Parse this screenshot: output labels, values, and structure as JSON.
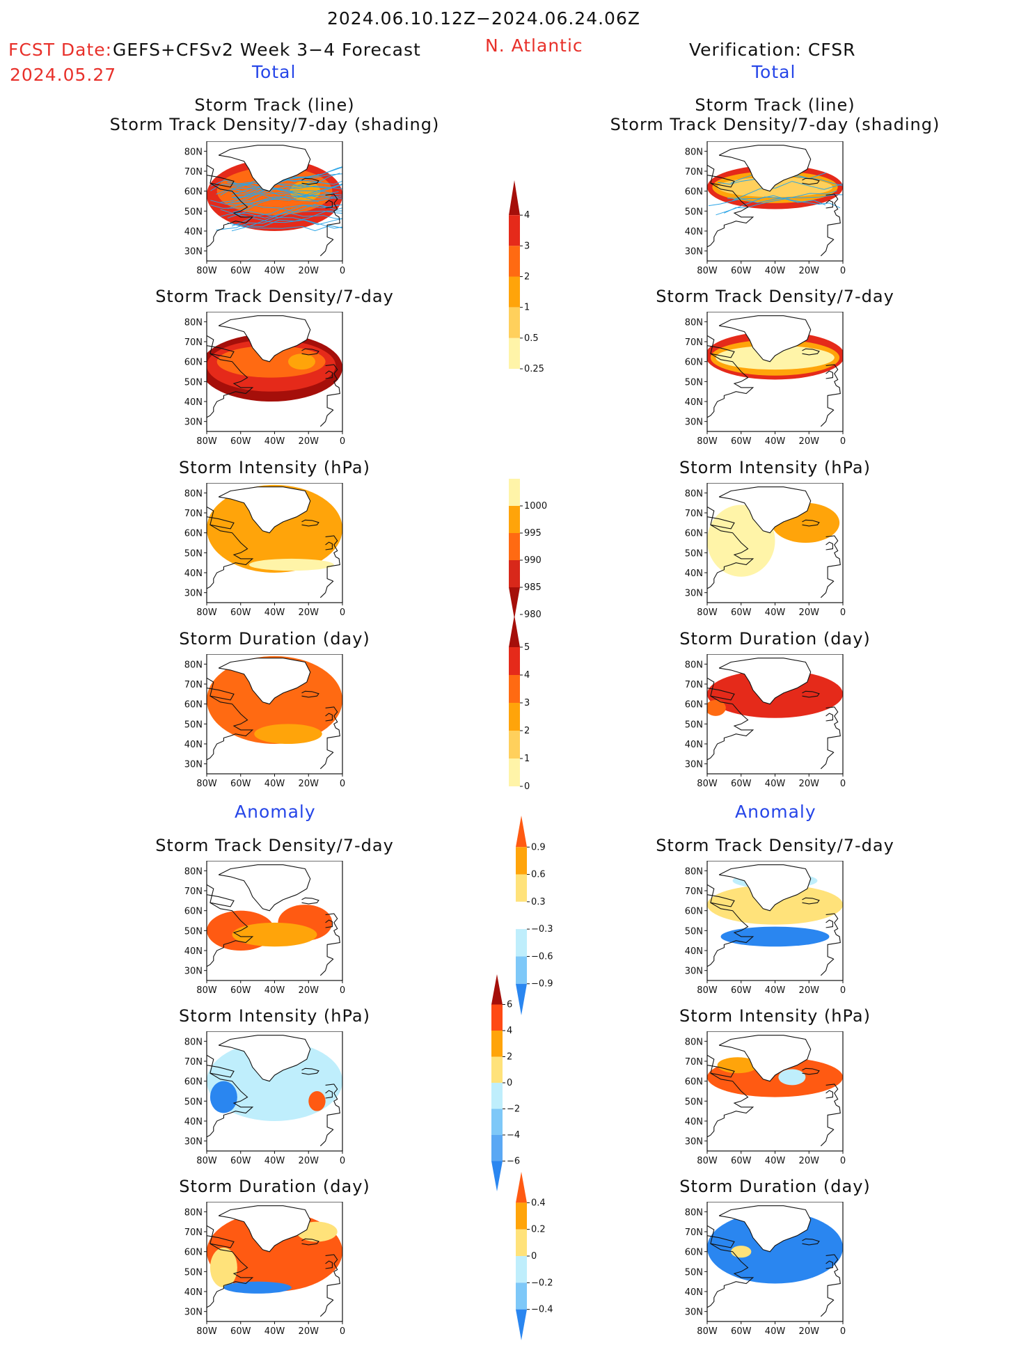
{
  "header": {
    "period": "2024.06.10.12Z−2024.06.24.06Z",
    "fcst_label": "FCST Date:",
    "model": "GEFS+CFSv2 Week 3−4 Forecast",
    "fcst_date": "2024.05.27",
    "region": "N. Atlantic",
    "verification": "Verification: CFSR",
    "left_total": "Total",
    "right_total": "Total",
    "left_anomaly": "Anomaly",
    "right_anomaly": "Anomaly"
  },
  "axis_ticks": {
    "lat": [
      "80N",
      "70N",
      "60N",
      "50N",
      "40N",
      "30N"
    ],
    "lon": [
      "80W",
      "60W",
      "40W",
      "20W",
      "0"
    ]
  },
  "colorbars": [
    {
      "name": "track-density",
      "labels": [
        "4",
        "3",
        "2",
        "1",
        "0.5",
        "0.25"
      ],
      "colors": [
        "#a50f0a",
        "#e52a1a",
        "#ff6a12",
        "#ffa40a",
        "#ffd05c",
        "#fff4a8"
      ],
      "top_arrow": true,
      "bottom_arrow": false
    },
    {
      "name": "intensity",
      "labels": [
        "1000",
        "995",
        "990",
        "985",
        "980"
      ],
      "colors": [
        "#fff4a8",
        "#ffa40a",
        "#ff6a12",
        "#d8281a",
        "#a50f0a"
      ],
      "top_arrow": false,
      "bottom_arrow": true
    },
    {
      "name": "duration",
      "labels": [
        "5",
        "4",
        "3",
        "2",
        "1",
        "0"
      ],
      "colors": [
        "#a50f0a",
        "#e52a1a",
        "#ff6a12",
        "#ffa40a",
        "#ffd05c",
        "#fff4a8"
      ],
      "top_arrow": true,
      "bottom_arrow": false
    },
    {
      "name": "density-anomaly",
      "labels": [
        "0.9",
        "0.6",
        "0.3",
        "−0.3",
        "−0.6",
        "−0.9"
      ],
      "colors": [
        "#ff5a12",
        "#ffa40a",
        "#ffe27a",
        "#ffffff",
        "#bfeefc",
        "#7ec8f8",
        "#2a86f0"
      ],
      "top_arrow": true,
      "bottom_arrow": true
    },
    {
      "name": "intensity-anomaly",
      "labels": [
        "6",
        "4",
        "2",
        "0",
        "−2",
        "−4",
        "−6"
      ],
      "colors": [
        "#a50f0a",
        "#ff4a14",
        "#ffa40a",
        "#ffe27a",
        "#bfeefc",
        "#7ec8f8",
        "#5aa8f4",
        "#2a86f0"
      ],
      "top_arrow": true,
      "bottom_arrow": true
    },
    {
      "name": "duration-anomaly",
      "labels": [
        "0.4",
        "0.2",
        "0",
        "−0.2",
        "−0.4"
      ],
      "colors": [
        "#ff5a12",
        "#ffa40a",
        "#ffe27a",
        "#bfeefc",
        "#7ec8f8",
        "#2a86f0"
      ],
      "top_arrow": true,
      "bottom_arrow": true
    }
  ],
  "chart_data": [
    {
      "type": "heatmap",
      "title": "Storm Track (line) / Storm Track Density/7-day (shading)",
      "side": "GEFS+CFSv2 Week 3−4 Forecast",
      "section": "Total",
      "title_lines": [
        "Storm Track (line)",
        "Storm Track Density/7-day (shading)"
      ],
      "xlim": [
        -80,
        0
      ],
      "ylim": [
        25,
        85
      ],
      "blobs": [
        {
          "lon": -40,
          "lat": 58,
          "rx": 40,
          "ry": 18,
          "level": 1
        },
        {
          "lon": -40,
          "lat": 60,
          "rx": 34,
          "ry": 12,
          "level": 2
        },
        {
          "lon": -22,
          "lat": 60,
          "rx": 9,
          "ry": 5,
          "level": 3
        }
      ],
      "tracks": "many"
    },
    {
      "type": "heatmap",
      "title": "Storm Track (line) / Storm Track Density/7-day (shading)",
      "side": "Verification: CFSR",
      "section": "Total",
      "title_lines": [
        "Storm Track (line)",
        "Storm Track Density/7-day (shading)"
      ],
      "xlim": [
        -80,
        0
      ],
      "ylim": [
        25,
        85
      ],
      "blobs": [
        {
          "lon": -40,
          "lat": 62,
          "rx": 40,
          "ry": 11,
          "level": 1
        },
        {
          "lon": -40,
          "lat": 62,
          "rx": 37,
          "ry": 8,
          "level": 3
        },
        {
          "lon": -40,
          "lat": 62,
          "rx": 34,
          "ry": 5,
          "level": 4
        }
      ],
      "tracks": "few"
    },
    {
      "type": "heatmap",
      "title": "Storm Track Density/7-day",
      "side": "GEFS+CFSv2 Week 3−4 Forecast",
      "section": "Total",
      "title_lines": [
        "Storm Track Density/7-day"
      ],
      "xlim": [
        -80,
        0
      ],
      "ylim": [
        25,
        85
      ],
      "blobs": [
        {
          "lon": -42,
          "lat": 57,
          "rx": 42,
          "ry": 17,
          "level": 0
        },
        {
          "lon": -42,
          "lat": 58,
          "rx": 38,
          "ry": 13,
          "level": 1
        },
        {
          "lon": -42,
          "lat": 60,
          "rx": 32,
          "ry": 8,
          "level": 2
        },
        {
          "lon": -24,
          "lat": 60,
          "rx": 8,
          "ry": 4,
          "level": 3
        }
      ]
    },
    {
      "type": "heatmap",
      "title": "Storm Track Density/7-day",
      "side": "Verification: CFSR",
      "section": "Total",
      "title_lines": [
        "Storm Track Density/7-day"
      ],
      "xlim": [
        -80,
        0
      ],
      "ylim": [
        25,
        85
      ],
      "blobs": [
        {
          "lon": -40,
          "lat": 63,
          "rx": 41,
          "ry": 12,
          "level": 1
        },
        {
          "lon": -40,
          "lat": 62,
          "rx": 38,
          "ry": 9,
          "level": 3
        },
        {
          "lon": -40,
          "lat": 62,
          "rx": 35,
          "ry": 6,
          "level": 5
        }
      ]
    },
    {
      "type": "heatmap",
      "title": "Storm Intensity (hPa)",
      "side": "GEFS+CFSv2 Week 3−4 Forecast",
      "section": "Total",
      "title_lines": [
        "Storm Intensity (hPa)"
      ],
      "xlim": [
        -80,
        0
      ],
      "ylim": [
        25,
        85
      ],
      "blobs": [
        {
          "lon": -40,
          "lat": 62,
          "rx": 40,
          "ry": 22,
          "level": 1
        },
        {
          "lon": -30,
          "lat": 44,
          "rx": 25,
          "ry": 3,
          "level": 0
        }
      ]
    },
    {
      "type": "heatmap",
      "title": "Storm Intensity (hPa)",
      "side": "Verification: CFSR",
      "section": "Total",
      "title_lines": [
        "Storm Intensity (hPa)"
      ],
      "xlim": [
        -80,
        0
      ],
      "ylim": [
        25,
        85
      ],
      "blobs": [
        {
          "lon": -60,
          "lat": 56,
          "rx": 20,
          "ry": 18,
          "level": 0
        },
        {
          "lon": -22,
          "lat": 65,
          "rx": 20,
          "ry": 10,
          "level": 1
        }
      ]
    },
    {
      "type": "heatmap",
      "title": "Storm Duration (day)",
      "side": "GEFS+CFSv2 Week 3−4 Forecast",
      "section": "Total",
      "title_lines": [
        "Storm Duration (day)"
      ],
      "xlim": [
        -80,
        0
      ],
      "ylim": [
        25,
        85
      ],
      "blobs": [
        {
          "lon": -40,
          "lat": 62,
          "rx": 40,
          "ry": 22,
          "level": 2
        },
        {
          "lon": -32,
          "lat": 45,
          "rx": 20,
          "ry": 5,
          "level": 3
        }
      ]
    },
    {
      "type": "heatmap",
      "title": "Storm Duration (day)",
      "side": "Verification: CFSR",
      "section": "Total",
      "title_lines": [
        "Storm Duration (day)"
      ],
      "xlim": [
        -80,
        0
      ],
      "ylim": [
        25,
        85
      ],
      "blobs": [
        {
          "lon": -40,
          "lat": 65,
          "rx": 40,
          "ry": 12,
          "level": 1
        },
        {
          "lon": -75,
          "lat": 58,
          "rx": 6,
          "ry": 4,
          "level": 2
        }
      ]
    },
    {
      "type": "heatmap",
      "title": "Storm Track Density/7-day",
      "side": "GEFS+CFSv2 Week 3−4 Forecast",
      "section": "Anomaly",
      "title_lines": [
        "Storm Track Density/7-day"
      ],
      "xlim": [
        -80,
        0
      ],
      "ylim": [
        25,
        85
      ],
      "blobs": [
        {
          "lon": -60,
          "lat": 50,
          "rx": 20,
          "ry": 10,
          "level": 2
        },
        {
          "lon": -22,
          "lat": 54,
          "rx": 16,
          "ry": 9,
          "level": 2
        },
        {
          "lon": -40,
          "lat": 48,
          "rx": 25,
          "ry": 6,
          "level": 1
        }
      ]
    },
    {
      "type": "heatmap",
      "title": "Storm Track Density/7-day",
      "side": "Verification: CFSR",
      "section": "Anomaly",
      "title_lines": [
        "Storm Track Density/7-day"
      ],
      "xlim": [
        -80,
        0
      ],
      "ylim": [
        25,
        85
      ],
      "blobs": [
        {
          "lon": -40,
          "lat": 63,
          "rx": 40,
          "ry": 10,
          "level": 0
        },
        {
          "lon": -40,
          "lat": 47,
          "rx": 32,
          "ry": 5,
          "level": 5
        },
        {
          "lon": -40,
          "lat": 75,
          "rx": 25,
          "ry": 4,
          "level": 4
        }
      ]
    },
    {
      "type": "heatmap",
      "title": "Storm Intensity (hPa)",
      "side": "GEFS+CFSv2 Week 3−4 Forecast",
      "section": "Anomaly",
      "title_lines": [
        "Storm Intensity (hPa)"
      ],
      "xlim": [
        -80,
        0
      ],
      "ylim": [
        25,
        85
      ],
      "blobs": [
        {
          "lon": -40,
          "lat": 60,
          "rx": 40,
          "ry": 20,
          "level": 4
        },
        {
          "lon": -70,
          "lat": 52,
          "rx": 8,
          "ry": 8,
          "level": 5
        },
        {
          "lon": -15,
          "lat": 50,
          "rx": 5,
          "ry": 5,
          "level": 2
        }
      ]
    },
    {
      "type": "heatmap",
      "title": "Storm Intensity (hPa)",
      "side": "Verification: CFSR",
      "section": "Anomaly",
      "title_lines": [
        "Storm Intensity (hPa)"
      ],
      "xlim": [
        -80,
        0
      ],
      "ylim": [
        25,
        85
      ],
      "blobs": [
        {
          "lon": -40,
          "lat": 62,
          "rx": 40,
          "ry": 10,
          "level": 2
        },
        {
          "lon": -62,
          "lat": 68,
          "rx": 12,
          "ry": 4,
          "level": 1
        },
        {
          "lon": -30,
          "lat": 62,
          "rx": 8,
          "ry": 4,
          "level": 4
        }
      ]
    },
    {
      "type": "heatmap",
      "title": "Storm Duration (day)",
      "side": "GEFS+CFSv2 Week 3−4 Forecast",
      "section": "Anomaly",
      "title_lines": [
        "Storm Duration (day)"
      ],
      "xlim": [
        -80,
        0
      ],
      "ylim": [
        25,
        85
      ],
      "blobs": [
        {
          "lon": -40,
          "lat": 60,
          "rx": 40,
          "ry": 20,
          "level": 2
        },
        {
          "lon": -70,
          "lat": 52,
          "rx": 8,
          "ry": 10,
          "level": 0
        },
        {
          "lon": -15,
          "lat": 70,
          "rx": 12,
          "ry": 5,
          "level": 0
        },
        {
          "lon": -50,
          "lat": 42,
          "rx": 20,
          "ry": 3,
          "level": 5
        }
      ]
    },
    {
      "type": "heatmap",
      "title": "Storm Duration (day)",
      "side": "Verification: CFSR",
      "section": "Anomaly",
      "title_lines": [
        "Storm Duration (day)"
      ],
      "xlim": [
        -80,
        0
      ],
      "ylim": [
        25,
        85
      ],
      "blobs": [
        {
          "lon": -40,
          "lat": 62,
          "rx": 40,
          "ry": 18,
          "level": 5
        },
        {
          "lon": -60,
          "lat": 60,
          "rx": 6,
          "ry": 3,
          "level": 0
        }
      ]
    }
  ]
}
